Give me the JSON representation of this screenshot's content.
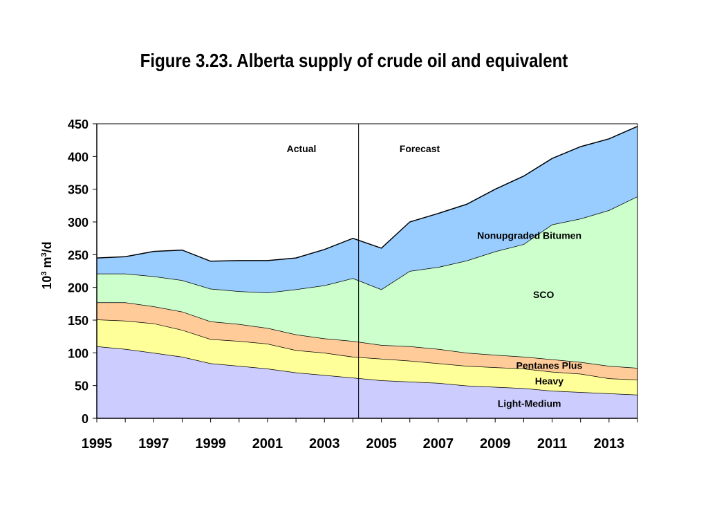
{
  "title": "Figure 3.23. Alberta supply of crude oil and equivalent",
  "chart_data": {
    "type": "area",
    "stacked": true,
    "x": [
      1995,
      1996,
      1997,
      1998,
      1999,
      2000,
      2001,
      2002,
      2003,
      2004,
      2005,
      2006,
      2007,
      2008,
      2009,
      2010,
      2011,
      2012,
      2013,
      2014
    ],
    "xticks": [
      "1995",
      "1997",
      "1999",
      "2001",
      "2003",
      "2005",
      "2007",
      "2009",
      "2011",
      "2013"
    ],
    "ylim": [
      0,
      450
    ],
    "yticks": [
      "0",
      "50",
      "100",
      "150",
      "200",
      "250",
      "300",
      "350",
      "400",
      "450"
    ],
    "ylabel": {
      "base": "10",
      "sup1": "3",
      "mid": " m",
      "sup2": "3",
      "end": "/d"
    },
    "xlabel": "",
    "divider_x": 2004.2,
    "annotations": {
      "actual": "Actual",
      "forecast": "Forecast"
    },
    "grid": false,
    "series": [
      {
        "name": "Light-Medium",
        "color": "#ccccff",
        "values": [
          110,
          106,
          100,
          94,
          84,
          80,
          76,
          70,
          66,
          62,
          58,
          56,
          54,
          50,
          48,
          46,
          42,
          40,
          38,
          36
        ]
      },
      {
        "name": "Heavy",
        "color": "#ffff99",
        "values": [
          41,
          43,
          45,
          41,
          37,
          38,
          38,
          34,
          34,
          32,
          33,
          32,
          30,
          30,
          30,
          30,
          29,
          28,
          23,
          23
        ]
      },
      {
        "name": "Pentanes Plus",
        "color": "#ffcc99",
        "values": [
          26,
          28,
          26,
          28,
          27,
          26,
          24,
          24,
          22,
          24,
          21,
          22,
          22,
          20,
          19,
          18,
          19,
          18,
          19,
          18
        ]
      },
      {
        "name": "SCO",
        "color": "#ccffcc",
        "values": [
          44,
          44,
          46,
          48,
          50,
          50,
          54,
          69,
          81,
          96,
          85,
          115,
          125,
          141,
          158,
          172,
          206,
          219,
          238,
          262
        ]
      },
      {
        "name": "Nonupgraded Bitumen",
        "color": "#99ccff",
        "values": [
          24,
          26,
          38,
          46,
          42,
          47,
          49,
          48,
          55,
          61,
          63,
          75,
          82,
          86,
          95,
          104,
          101,
          110,
          109,
          107
        ]
      }
    ]
  }
}
